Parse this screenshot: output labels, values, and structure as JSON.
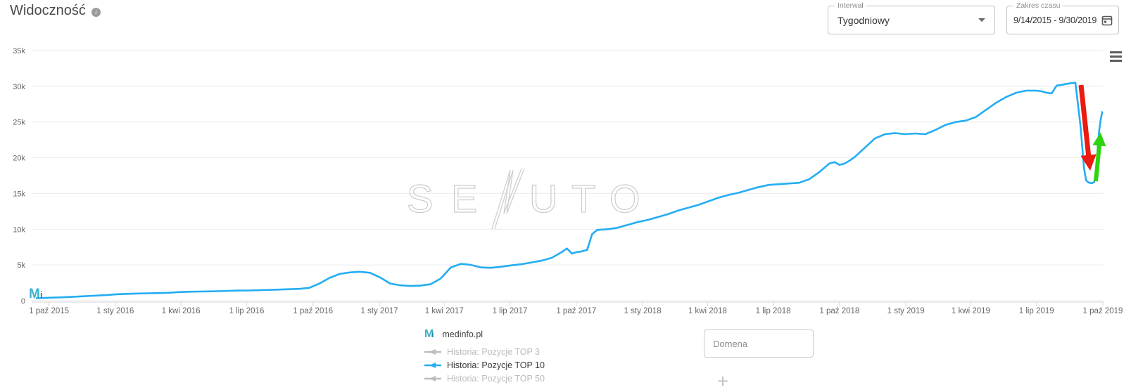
{
  "header": {
    "title": "Widoczność",
    "info_icon": "i"
  },
  "controls": {
    "interval": {
      "label": "Interwał",
      "value": "Tygodniowy"
    },
    "date_range": {
      "label": "Zakres czasu",
      "value": "9/14/2015 - 9/30/2019"
    }
  },
  "watermark": {
    "text": "SENUTO",
    "letters_left": "SE",
    "letters_right": "UTO"
  },
  "legend": {
    "domain": {
      "label": "medinfo.pl",
      "logo_letter": "M",
      "logo_sub": "i"
    },
    "items": [
      {
        "label": "Historia: Pozycje TOP 3",
        "active": false,
        "color": "#bcbcbc"
      },
      {
        "label": "Historia: Pozycje TOP 10",
        "active": true,
        "color": "#23adf3"
      },
      {
        "label": "Historia: Pozycje TOP 50",
        "active": false,
        "color": "#bcbcbc"
      }
    ]
  },
  "domain_input": {
    "placeholder": "Domena"
  },
  "add_button": {
    "glyph": "+"
  },
  "chart_data": {
    "type": "line",
    "title": "Widoczność",
    "interval": "weekly",
    "x_range": [
      "2015-09-14",
      "2019-09-30"
    ],
    "ylim": [
      0,
      35000
    ],
    "grid": true,
    "legend_position": "bottom",
    "y_ticks": [
      {
        "v": 0,
        "label": "0"
      },
      {
        "v": 5000,
        "label": "5k"
      },
      {
        "v": 10000,
        "label": "10k"
      },
      {
        "v": 15000,
        "label": "15k"
      },
      {
        "v": 20000,
        "label": "20k"
      },
      {
        "v": 25000,
        "label": "25k"
      },
      {
        "v": 30000,
        "label": "30k"
      },
      {
        "v": 35000,
        "label": "35k"
      }
    ],
    "x_ticks": [
      {
        "date": "2015-10-01",
        "label": "1 paź 2015"
      },
      {
        "date": "2016-01-01",
        "label": "1 sty 2016"
      },
      {
        "date": "2016-04-01",
        "label": "1 kwi 2016"
      },
      {
        "date": "2016-07-01",
        "label": "1 lip 2016"
      },
      {
        "date": "2016-10-01",
        "label": "1 paź 2016"
      },
      {
        "date": "2017-01-01",
        "label": "1 sty 2017"
      },
      {
        "date": "2017-04-01",
        "label": "1 kwi 2017"
      },
      {
        "date": "2017-07-01",
        "label": "1 lip 2017"
      },
      {
        "date": "2017-10-01",
        "label": "1 paź 2017"
      },
      {
        "date": "2018-01-01",
        "label": "1 sty 2018"
      },
      {
        "date": "2018-04-01",
        "label": "1 kwi 2018"
      },
      {
        "date": "2018-07-01",
        "label": "1 lip 2018"
      },
      {
        "date": "2018-10-01",
        "label": "1 paź 2018"
      },
      {
        "date": "2019-01-01",
        "label": "1 sty 2019"
      },
      {
        "date": "2019-04-01",
        "label": "1 kwi 2019"
      },
      {
        "date": "2019-07-01",
        "label": "1 lip 2019"
      },
      {
        "date": "2019-10-01",
        "label": "1 paź 2019"
      }
    ],
    "series": [
      {
        "name": "Historia: Pozycje TOP 10",
        "domain": "medinfo.pl",
        "color": "#23adf3",
        "points": [
          [
            "2015-09-14",
            350
          ],
          [
            "2015-09-28",
            400
          ],
          [
            "2015-10-12",
            450
          ],
          [
            "2015-10-26",
            500
          ],
          [
            "2015-11-09",
            570
          ],
          [
            "2015-11-23",
            650
          ],
          [
            "2015-12-07",
            720
          ],
          [
            "2015-12-21",
            800
          ],
          [
            "2016-01-04",
            900
          ],
          [
            "2016-01-18",
            950
          ],
          [
            "2016-02-01",
            1000
          ],
          [
            "2016-02-15",
            1030
          ],
          [
            "2016-02-29",
            1060
          ],
          [
            "2016-03-14",
            1100
          ],
          [
            "2016-03-28",
            1200
          ],
          [
            "2016-04-11",
            1250
          ],
          [
            "2016-04-25",
            1280
          ],
          [
            "2016-05-09",
            1300
          ],
          [
            "2016-05-23",
            1330
          ],
          [
            "2016-06-06",
            1380
          ],
          [
            "2016-06-20",
            1420
          ],
          [
            "2016-07-04",
            1430
          ],
          [
            "2016-07-18",
            1460
          ],
          [
            "2016-08-01",
            1500
          ],
          [
            "2016-08-15",
            1550
          ],
          [
            "2016-08-29",
            1600
          ],
          [
            "2016-09-12",
            1650
          ],
          [
            "2016-09-26",
            1800
          ],
          [
            "2016-10-10",
            2400
          ],
          [
            "2016-10-24",
            3200
          ],
          [
            "2016-11-07",
            3750
          ],
          [
            "2016-11-21",
            3950
          ],
          [
            "2016-12-05",
            4050
          ],
          [
            "2016-12-19",
            3900
          ],
          [
            "2017-01-02",
            3250
          ],
          [
            "2017-01-16",
            2400
          ],
          [
            "2017-01-30",
            2150
          ],
          [
            "2017-02-13",
            2050
          ],
          [
            "2017-02-27",
            2100
          ],
          [
            "2017-03-13",
            2300
          ],
          [
            "2017-03-27",
            3100
          ],
          [
            "2017-04-10",
            4650
          ],
          [
            "2017-04-24",
            5150
          ],
          [
            "2017-05-08",
            5000
          ],
          [
            "2017-05-22",
            4650
          ],
          [
            "2017-06-05",
            4600
          ],
          [
            "2017-06-19",
            4750
          ],
          [
            "2017-07-03",
            4950
          ],
          [
            "2017-07-17",
            5100
          ],
          [
            "2017-07-31",
            5350
          ],
          [
            "2017-08-14",
            5600
          ],
          [
            "2017-08-28",
            6000
          ],
          [
            "2017-09-11",
            6800
          ],
          [
            "2017-09-18",
            7300
          ],
          [
            "2017-09-25",
            6600
          ],
          [
            "2017-10-02",
            6800
          ],
          [
            "2017-10-09",
            6900
          ],
          [
            "2017-10-16",
            7100
          ],
          [
            "2017-10-23",
            9300
          ],
          [
            "2017-10-30",
            9900
          ],
          [
            "2017-11-13",
            10000
          ],
          [
            "2017-11-27",
            10200
          ],
          [
            "2017-12-11",
            10600
          ],
          [
            "2017-12-25",
            11000
          ],
          [
            "2018-01-08",
            11300
          ],
          [
            "2018-01-22",
            11700
          ],
          [
            "2018-02-05",
            12100
          ],
          [
            "2018-02-19",
            12600
          ],
          [
            "2018-03-05",
            13000
          ],
          [
            "2018-03-19",
            13400
          ],
          [
            "2018-04-02",
            13900
          ],
          [
            "2018-04-16",
            14400
          ],
          [
            "2018-04-30",
            14800
          ],
          [
            "2018-05-14",
            15100
          ],
          [
            "2018-05-28",
            15500
          ],
          [
            "2018-06-11",
            15900
          ],
          [
            "2018-06-25",
            16200
          ],
          [
            "2018-07-09",
            16300
          ],
          [
            "2018-07-23",
            16400
          ],
          [
            "2018-08-06",
            16500
          ],
          [
            "2018-08-20",
            17000
          ],
          [
            "2018-09-03",
            18000
          ],
          [
            "2018-09-17",
            19200
          ],
          [
            "2018-09-24",
            19400
          ],
          [
            "2018-10-01",
            19000
          ],
          [
            "2018-10-08",
            19200
          ],
          [
            "2018-10-15",
            19600
          ],
          [
            "2018-10-22",
            20100
          ],
          [
            "2018-11-05",
            21400
          ],
          [
            "2018-11-19",
            22700
          ],
          [
            "2018-12-03",
            23300
          ],
          [
            "2018-12-17",
            23450
          ],
          [
            "2018-12-31",
            23300
          ],
          [
            "2019-01-14",
            23400
          ],
          [
            "2019-01-28",
            23300
          ],
          [
            "2019-02-11",
            23900
          ],
          [
            "2019-02-25",
            24600
          ],
          [
            "2019-03-11",
            25000
          ],
          [
            "2019-03-25",
            25200
          ],
          [
            "2019-04-08",
            25700
          ],
          [
            "2019-04-22",
            26700
          ],
          [
            "2019-05-06",
            27700
          ],
          [
            "2019-05-20",
            28500
          ],
          [
            "2019-06-03",
            29100
          ],
          [
            "2019-06-17",
            29400
          ],
          [
            "2019-07-01",
            29400
          ],
          [
            "2019-07-08",
            29300
          ],
          [
            "2019-07-15",
            29100
          ],
          [
            "2019-07-22",
            29000
          ],
          [
            "2019-07-29",
            30100
          ],
          [
            "2019-08-05",
            30200
          ],
          [
            "2019-08-12",
            30350
          ],
          [
            "2019-08-19",
            30450
          ],
          [
            "2019-08-24",
            30500
          ],
          [
            "2019-08-31",
            24500
          ],
          [
            "2019-09-05",
            18500
          ],
          [
            "2019-09-08",
            16800
          ],
          [
            "2019-09-12",
            16500
          ],
          [
            "2019-09-16",
            16450
          ],
          [
            "2019-09-19",
            16600
          ],
          [
            "2019-09-22",
            18500
          ],
          [
            "2019-09-24",
            21500
          ],
          [
            "2019-09-26",
            23900
          ],
          [
            "2019-09-28",
            25300
          ],
          [
            "2019-09-30",
            26400
          ]
        ]
      }
    ],
    "annotations": [
      {
        "id": "drop-arrow",
        "direction": "down",
        "color": "#ec1b10",
        "meaning": "sudden visibility drop"
      },
      {
        "id": "recovery-arrow",
        "direction": "up",
        "color": "#2fd410",
        "meaning": "visibility recovery"
      }
    ]
  }
}
